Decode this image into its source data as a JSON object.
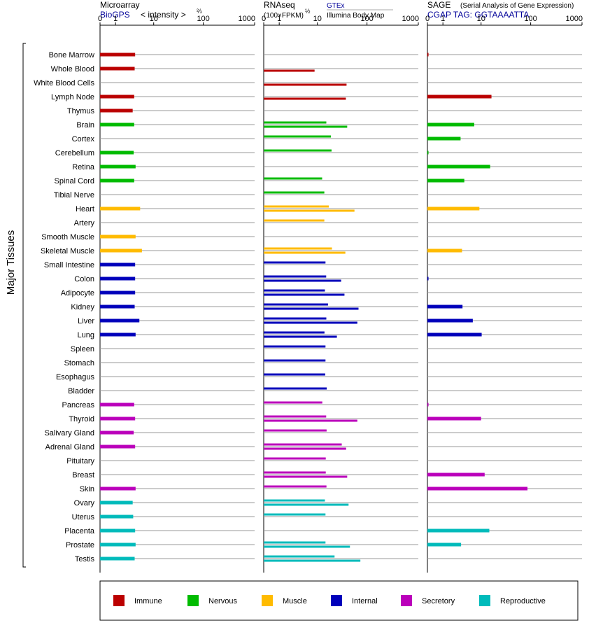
{
  "chart_data": {
    "type": "bar",
    "y_axis_title": "Major Tissues",
    "tissues": [
      "Bone Marrow",
      "Whole Blood",
      "White Blood Cells",
      "Lymph Node",
      "Thymus",
      "Brain",
      "Cortex",
      "Cerebellum",
      "Retina",
      "Spinal Cord",
      "Tibial Nerve",
      "Heart",
      "Artery",
      "Smooth Muscle",
      "Skeletal Muscle",
      "Small Intestine",
      "Colon",
      "Adipocyte",
      "Kidney",
      "Liver",
      "Lung",
      "Spleen",
      "Stomach",
      "Esophagus",
      "Bladder",
      "Pancreas",
      "Thyroid",
      "Salivary Gland",
      "Adrenal Gland",
      "Pituitary",
      "Breast",
      "Skin",
      "Ovary",
      "Uterus",
      "Placenta",
      "Prostate",
      "Testis"
    ],
    "groups": [
      0,
      0,
      0,
      0,
      0,
      1,
      1,
      1,
      1,
      1,
      1,
      2,
      2,
      2,
      2,
      3,
      3,
      3,
      3,
      3,
      3,
      3,
      3,
      3,
      3,
      4,
      4,
      4,
      4,
      4,
      4,
      4,
      5,
      5,
      5,
      5,
      5
    ],
    "colors": [
      "#bb0000",
      "#00bb00",
      "#ffbb00",
      "#0000bb",
      "#bb00bb",
      "#00bbbb"
    ],
    "legend": [
      "Immune",
      "Nervous",
      "Muscle",
      "Internal",
      "Secretory",
      "Reproductive"
    ],
    "panels": [
      {
        "id": "microarray",
        "title": "Microarray",
        "subtitle_link": "BioGPS",
        "subtitle_text": "< intensity >",
        "subtitle_exp": "⅔",
        "ticks": [
          "0",
          "1",
          "10",
          "100",
          "1000"
        ],
        "values": [
          3.8,
          3.7,
          null,
          3.6,
          3.3,
          3.6,
          null,
          3.5,
          3.9,
          3.6,
          null,
          5.0,
          null,
          3.9,
          5.5,
          3.8,
          3.8,
          3.8,
          3.7,
          4.8,
          3.9,
          null,
          null,
          null,
          null,
          3.6,
          3.8,
          3.5,
          3.8,
          null,
          null,
          3.9,
          3.3,
          3.4,
          3.8,
          3.9,
          3.7
        ],
        "values2": null
      },
      {
        "id": "rnaseq",
        "title": "RNAseq",
        "subtitle_text": "(100×FPKM)",
        "subtitle_exp": "½",
        "source1": "GTEx",
        "source2": "Illumina Body Map",
        "ticks": [
          "0",
          "1",
          "10",
          "100",
          "1000"
        ],
        "values": [
          null,
          null,
          null,
          null,
          null,
          15.4,
          19.1,
          19.7,
          null,
          12.6,
          14.0,
          17.3,
          14.0,
          null,
          20.1,
          14.8,
          15.3,
          14.4,
          16.7,
          15.4,
          14.1,
          14.8,
          14.8,
          14.6,
          15.7,
          12.7,
          15.3,
          15.6,
          31.7,
          15.0,
          15.0,
          15.5,
          14.4,
          14.8,
          null,
          14.8,
          22.7
        ],
        "values2": [
          null,
          8.7,
          39.5,
          38.3,
          null,
          40.7,
          null,
          null,
          null,
          null,
          null,
          56.7,
          null,
          null,
          37.4,
          null,
          30.8,
          35.9,
          68.1,
          64.6,
          25.3,
          null,
          null,
          null,
          null,
          null,
          64.6,
          null,
          38.7,
          null,
          40.7,
          null,
          43.3,
          null,
          null,
          46.1,
          74.1
        ]
      },
      {
        "id": "sage",
        "title": "SAGE",
        "title_note": "(Serial Analysis of Gene Expression)",
        "subtitle_link": "CGAP TAG: GGTAAAATTA",
        "ticks": [
          "0",
          "1",
          "10",
          "100",
          "1000"
        ],
        "values": [
          0.05,
          null,
          null,
          16.5,
          null,
          7.1,
          3.4,
          0.05,
          15.5,
          4.2,
          null,
          9.2,
          null,
          null,
          3.7,
          null,
          0.05,
          null,
          3.8,
          6.6,
          10.3,
          null,
          null,
          null,
          null,
          0.05,
          10.0,
          null,
          null,
          null,
          11.9,
          86.6,
          null,
          null,
          14.9,
          3.5,
          null
        ],
        "values2": null
      }
    ]
  }
}
